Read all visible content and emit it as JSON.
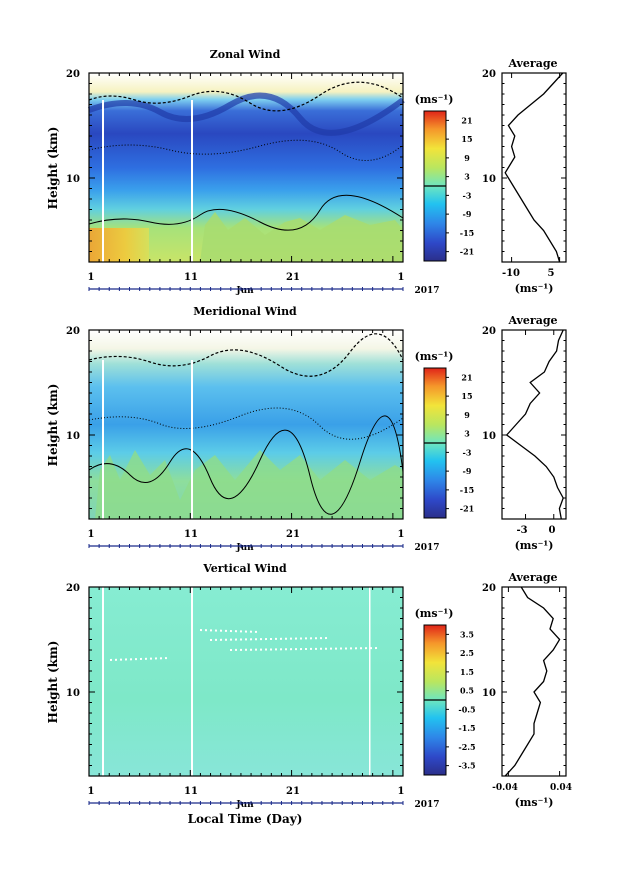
{
  "figure": {
    "xlabel": "Local Time (Day)",
    "month_label": "Jun",
    "year_label": "2017"
  },
  "chart_data": [
    {
      "type": "heatmap",
      "title": "Zonal Wind",
      "ylabel": "Height (km)",
      "unit": "(ms⁻¹)",
      "xticks": [
        "1",
        "11",
        "21",
        "1"
      ],
      "yticks": [
        "10",
        "20"
      ],
      "ylim": [
        2,
        20
      ],
      "xlim_days": [
        1,
        32
      ],
      "colorbar": {
        "ticks": [
          "21",
          "15",
          "9",
          "3",
          "-3",
          "-9",
          "-15",
          "-21"
        ],
        "range": [
          -24,
          24
        ]
      },
      "average_profile": {
        "title": "Average",
        "xticks": [
          "-10",
          "5"
        ],
        "xlim": [
          -13,
          7
        ],
        "xlabel": "(ms⁻¹)",
        "yticks": [
          "10",
          "20"
        ],
        "heights_km": [
          2,
          3,
          4,
          5,
          6,
          7,
          8,
          9,
          10,
          10.5,
          11,
          12,
          13,
          14,
          15,
          16,
          17,
          18,
          19,
          20
        ],
        "values": [
          5,
          4,
          2,
          0,
          -3,
          -5,
          -7,
          -9,
          -11,
          -12,
          -11,
          -9,
          -10,
          -9,
          -11,
          -8,
          -4,
          0,
          3,
          6
        ]
      }
    },
    {
      "type": "heatmap",
      "title": "Meridional Wind",
      "ylabel": "Height (km)",
      "unit": "(ms⁻¹)",
      "xticks": [
        "1",
        "11",
        "21",
        "1"
      ],
      "yticks": [
        "10",
        "20"
      ],
      "ylim": [
        2,
        20
      ],
      "xlim_days": [
        1,
        32
      ],
      "colorbar": {
        "ticks": [
          "21",
          "15",
          "9",
          "3",
          "-3",
          "-9",
          "-15",
          "-21"
        ],
        "range": [
          -24,
          24
        ]
      },
      "average_profile": {
        "title": "Average",
        "xticks": [
          "-3",
          "0"
        ],
        "xlim": [
          -5.5,
          1.3
        ],
        "xlabel": "(ms⁻¹)",
        "yticks": [
          "10",
          "20"
        ],
        "heights_km": [
          2,
          3,
          4,
          5,
          6,
          7,
          8,
          9,
          10,
          11,
          12,
          13,
          14,
          15,
          16,
          17,
          18,
          19,
          20
        ],
        "values": [
          0.8,
          0.6,
          1.0,
          0.4,
          0,
          -0.8,
          -2,
          -3.5,
          -5,
          -4,
          -3,
          -2.5,
          -1.5,
          -2.5,
          -1,
          -0.5,
          0.3,
          0.5,
          1
        ]
      }
    },
    {
      "type": "heatmap",
      "title": "Vertical Wind",
      "ylabel": "Height (km)",
      "unit": "(ms⁻¹)",
      "xticks": [
        "1",
        "11",
        "21",
        "1"
      ],
      "yticks": [
        "10",
        "20"
      ],
      "ylim": [
        2,
        20
      ],
      "xlim_days": [
        1,
        32
      ],
      "colorbar": {
        "ticks": [
          "3.5",
          "2.5",
          "1.5",
          "0.5",
          "-0.5",
          "-1.5",
          "-2.5",
          "-3.5"
        ],
        "range": [
          -4,
          4
        ]
      },
      "average_profile": {
        "title": "Average",
        "xticks": [
          "-0.04",
          "0.04"
        ],
        "xlim": [
          -0.05,
          0.05
        ],
        "xlabel": "(ms⁻¹)",
        "yticks": [
          "10",
          "20"
        ],
        "heights_km": [
          2,
          3,
          4,
          5,
          6,
          7,
          8,
          9,
          10,
          11,
          12,
          13,
          14,
          15,
          16,
          17,
          18,
          19,
          20
        ],
        "values": [
          -0.045,
          -0.03,
          -0.02,
          -0.01,
          0.0,
          0.0,
          0.005,
          0.01,
          0.0,
          0.015,
          0.02,
          0.015,
          0.03,
          0.04,
          0.025,
          0.03,
          0.015,
          -0.01,
          -0.02
        ]
      }
    }
  ]
}
